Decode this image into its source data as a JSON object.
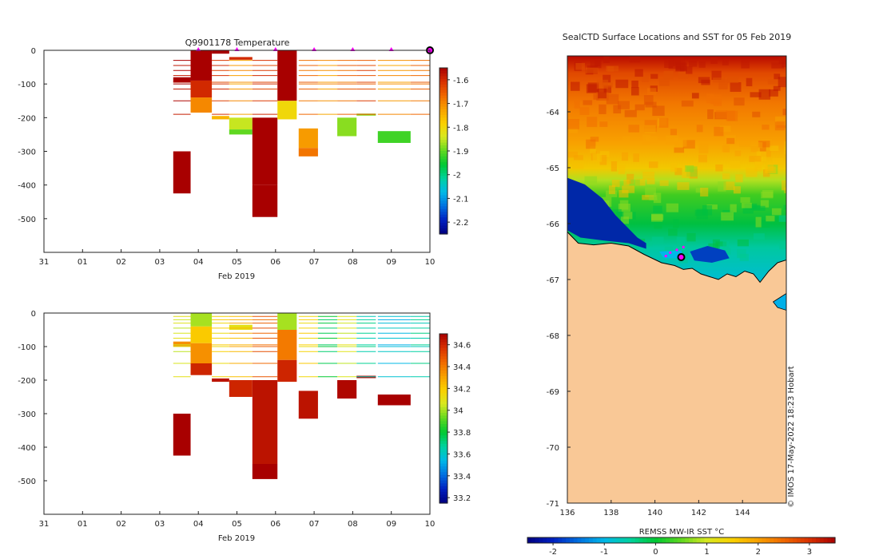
{
  "colors": {
    "land": "#f9c896",
    "axis": "#222222",
    "marker": "#ff00ff",
    "scale": [
      "#000080",
      "#0020c0",
      "#0070e0",
      "#00b8e8",
      "#00d2a0",
      "#00c832",
      "#60d820",
      "#d8e820",
      "#fad000",
      "#f8a000",
      "#f06800",
      "#d83000",
      "#a80000"
    ]
  },
  "chart_data": [
    {
      "type": "heatmap",
      "title": "Q9901178  Temperature",
      "xlabel": "Feb 2019",
      "ylabel": "",
      "xlim": [
        0,
        10
      ],
      "ylim": [
        -600,
        0
      ],
      "xticks": [
        {
          "v": 0,
          "label": "31"
        },
        {
          "v": 1,
          "label": "01"
        },
        {
          "v": 2,
          "label": "02"
        },
        {
          "v": 3,
          "label": "03"
        },
        {
          "v": 4,
          "label": "04"
        },
        {
          "v": 5,
          "label": "05"
        },
        {
          "v": 6,
          "label": "06"
        },
        {
          "v": 7,
          "label": "07"
        },
        {
          "v": 8,
          "label": "08"
        },
        {
          "v": 9,
          "label": "09"
        },
        {
          "v": 10,
          "label": "10"
        }
      ],
      "yticks": [
        {
          "v": 0,
          "label": "0"
        },
        {
          "v": -100,
          "label": "-100"
        },
        {
          "v": -200,
          "label": "-200"
        },
        {
          "v": -300,
          "label": "-300"
        },
        {
          "v": -400,
          "label": "-400"
        },
        {
          "v": -500,
          "label": "-500"
        }
      ],
      "colorbar": {
        "range": [
          -2.25,
          -1.55
        ],
        "ticks": [
          {
            "v": -1.6,
            "label": "-1.6"
          },
          {
            "v": -1.7,
            "label": "-1.7"
          },
          {
            "v": -1.8,
            "label": "-1.8"
          },
          {
            "v": -1.9,
            "label": "-1.9"
          },
          {
            "v": -2.0,
            "label": "-2"
          },
          {
            "v": -2.1,
            "label": "-2.1"
          },
          {
            "v": -2.2,
            "label": "-2.2"
          }
        ]
      },
      "surface_markers": [
        4.0,
        5.0,
        6.0,
        7.0,
        8.0,
        9.0
      ],
      "last_marker": 10.0,
      "profiles": [
        {
          "x0": 3.35,
          "x1": 3.8,
          "top": -80,
          "bottom": -95,
          "value": -1.55
        },
        {
          "x0": 3.35,
          "x1": 3.8,
          "top": -300,
          "bottom": -425,
          "value": -1.55
        },
        {
          "x0": 3.8,
          "x1": 4.35,
          "top": 0,
          "bottom": -90,
          "value": -1.55
        },
        {
          "x0": 3.8,
          "x1": 4.35,
          "top": -90,
          "bottom": -140,
          "value": -1.6
        },
        {
          "x0": 3.8,
          "x1": 4.35,
          "top": -140,
          "bottom": -185,
          "value": -1.7
        },
        {
          "x0": 4.35,
          "x1": 4.8,
          "top": 0,
          "bottom": -10,
          "value": -1.55
        },
        {
          "x0": 4.35,
          "x1": 4.8,
          "top": -195,
          "bottom": -205,
          "value": -1.75
        },
        {
          "x0": 4.8,
          "x1": 5.4,
          "top": -20,
          "bottom": -28,
          "value": -1.6
        },
        {
          "x0": 4.8,
          "x1": 5.4,
          "top": -200,
          "bottom": -235,
          "value": -1.85
        },
        {
          "x0": 4.8,
          "x1": 5.4,
          "top": -235,
          "bottom": -250,
          "value": -1.9
        },
        {
          "x0": 5.4,
          "x1": 6.05,
          "top": -200,
          "bottom": -400,
          "value": -1.55
        },
        {
          "x0": 5.4,
          "x1": 6.05,
          "top": -400,
          "bottom": -495,
          "value": -1.55
        },
        {
          "x0": 6.05,
          "x1": 6.55,
          "top": 0,
          "bottom": -150,
          "value": -1.55
        },
        {
          "x0": 6.05,
          "x1": 6.55,
          "top": -150,
          "bottom": -205,
          "value": -1.8
        },
        {
          "x0": 6.6,
          "x1": 7.1,
          "top": -232,
          "bottom": -290,
          "value": -1.72
        },
        {
          "x0": 6.6,
          "x1": 7.1,
          "top": -290,
          "bottom": -315,
          "value": -1.68
        },
        {
          "x0": 7.6,
          "x1": 8.1,
          "top": -200,
          "bottom": -255,
          "value": -1.88
        },
        {
          "x0": 8.1,
          "x1": 8.6,
          "top": -188,
          "bottom": -194,
          "value": -1.88
        },
        {
          "x0": 8.65,
          "x1": 9.5,
          "top": -240,
          "bottom": -275,
          "value": -1.92
        }
      ],
      "line_levels": [
        -30,
        -45,
        -60,
        -75,
        -95,
        -100,
        -115,
        -150,
        -190
      ],
      "line_rows": [
        {
          "x0": 3.35,
          "x1": 3.8,
          "value": -1.55
        },
        {
          "x0": 4.35,
          "x1": 4.8,
          "value": -1.6
        },
        {
          "x0": 4.8,
          "x1": 5.4,
          "value": -1.7
        },
        {
          "x0": 5.4,
          "x1": 6.05,
          "value": -1.6
        },
        {
          "x0": 6.6,
          "x1": 7.1,
          "value": -1.65
        },
        {
          "x0": 7.1,
          "x1": 7.6,
          "value": -1.7
        },
        {
          "x0": 7.6,
          "x1": 8.1,
          "value": -1.65
        },
        {
          "x0": 8.1,
          "x1": 8.6,
          "value": -1.62
        },
        {
          "x0": 8.65,
          "x1": 9.5,
          "value": -1.7
        },
        {
          "x0": 9.5,
          "x1": 10.0,
          "value": -1.65
        }
      ]
    },
    {
      "type": "heatmap",
      "title": "",
      "xlabel": "Feb 2019",
      "ylabel": "",
      "xlim": [
        0,
        10
      ],
      "ylim": [
        -600,
        0
      ],
      "xticks": [
        {
          "v": 0,
          "label": "31"
        },
        {
          "v": 1,
          "label": "01"
        },
        {
          "v": 2,
          "label": "02"
        },
        {
          "v": 3,
          "label": "03"
        },
        {
          "v": 4,
          "label": "04"
        },
        {
          "v": 5,
          "label": "05"
        },
        {
          "v": 6,
          "label": "06"
        },
        {
          "v": 7,
          "label": "07"
        },
        {
          "v": 8,
          "label": "08"
        },
        {
          "v": 9,
          "label": "09"
        },
        {
          "v": 10,
          "label": "10"
        }
      ],
      "yticks": [
        {
          "v": 0,
          "label": "0"
        },
        {
          "v": -100,
          "label": "-100"
        },
        {
          "v": -200,
          "label": "-200"
        },
        {
          "v": -300,
          "label": "-300"
        },
        {
          "v": -400,
          "label": "-400"
        },
        {
          "v": -500,
          "label": "-500"
        }
      ],
      "colorbar": {
        "range": [
          33.15,
          34.7
        ],
        "ticks": [
          {
            "v": 34.6,
            "label": "34.6"
          },
          {
            "v": 34.4,
            "label": "34.4"
          },
          {
            "v": 34.2,
            "label": "34.2"
          },
          {
            "v": 34.0,
            "label": "34"
          },
          {
            "v": 33.8,
            "label": "33.8"
          },
          {
            "v": 33.6,
            "label": "33.6"
          },
          {
            "v": 33.4,
            "label": "33.4"
          },
          {
            "v": 33.2,
            "label": "33.2"
          }
        ]
      },
      "profiles": [
        {
          "x0": 3.35,
          "x1": 3.8,
          "top": -85,
          "bottom": -100,
          "value": 34.35
        },
        {
          "x0": 3.35,
          "x1": 3.8,
          "top": -300,
          "bottom": -425,
          "value": 34.7
        },
        {
          "x0": 3.8,
          "x1": 4.35,
          "top": 0,
          "bottom": -40,
          "value": 34.0
        },
        {
          "x0": 3.8,
          "x1": 4.35,
          "top": -40,
          "bottom": -90,
          "value": 34.2
        },
        {
          "x0": 3.8,
          "x1": 4.35,
          "top": -90,
          "bottom": -150,
          "value": 34.35
        },
        {
          "x0": 3.8,
          "x1": 4.35,
          "top": -150,
          "bottom": -185,
          "value": 34.6
        },
        {
          "x0": 4.35,
          "x1": 4.8,
          "top": -195,
          "bottom": -205,
          "value": 34.65
        },
        {
          "x0": 4.8,
          "x1": 5.4,
          "top": -35,
          "bottom": -50,
          "value": 34.1
        },
        {
          "x0": 4.8,
          "x1": 5.4,
          "top": -200,
          "bottom": -250,
          "value": 34.6
        },
        {
          "x0": 5.4,
          "x1": 6.05,
          "top": -200,
          "bottom": -450,
          "value": 34.65
        },
        {
          "x0": 5.4,
          "x1": 6.05,
          "top": -450,
          "bottom": -495,
          "value": 34.7
        },
        {
          "x0": 6.05,
          "x1": 6.55,
          "top": 0,
          "bottom": -50,
          "value": 34.0
        },
        {
          "x0": 6.05,
          "x1": 6.55,
          "top": -50,
          "bottom": -140,
          "value": 34.4
        },
        {
          "x0": 6.05,
          "x1": 6.55,
          "top": -140,
          "bottom": -205,
          "value": 34.6
        },
        {
          "x0": 6.6,
          "x1": 7.1,
          "top": -232,
          "bottom": -315,
          "value": 34.65
        },
        {
          "x0": 7.6,
          "x1": 8.1,
          "top": -200,
          "bottom": -255,
          "value": 34.68
        },
        {
          "x0": 8.1,
          "x1": 8.6,
          "top": -187,
          "bottom": -194,
          "value": 34.68
        },
        {
          "x0": 8.65,
          "x1": 9.5,
          "top": -243,
          "bottom": -275,
          "value": 34.7
        }
      ],
      "line_levels": [
        -10,
        -20,
        -30,
        -45,
        -60,
        -75,
        -95,
        -100,
        -115,
        -150,
        -190
      ],
      "line_rows": [
        {
          "x0": 3.35,
          "x1": 3.8,
          "value": 34.1
        },
        {
          "x0": 4.35,
          "x1": 4.8,
          "value": 34.2
        },
        {
          "x0": 4.8,
          "x1": 5.4,
          "value": 34.3
        },
        {
          "x0": 5.4,
          "x1": 6.05,
          "value": 34.5
        },
        {
          "x0": 6.6,
          "x1": 7.1,
          "value": 34.2
        },
        {
          "x0": 7.1,
          "x1": 7.6,
          "value": 33.8
        },
        {
          "x0": 7.6,
          "x1": 8.1,
          "value": 34.1
        },
        {
          "x0": 8.1,
          "x1": 8.6,
          "value": 33.7
        },
        {
          "x0": 8.65,
          "x1": 9.5,
          "value": 33.6
        },
        {
          "x0": 9.5,
          "x1": 10.0,
          "value": 33.7
        }
      ]
    },
    {
      "type": "heatmap",
      "title": "SealCTD Surface Locations and SST for 05 Feb 2019",
      "xlabel": "",
      "ylabel": "",
      "xlim": [
        136,
        146
      ],
      "ylim": [
        -71,
        -63
      ],
      "xticks": [
        {
          "v": 136,
          "label": "136"
        },
        {
          "v": 138,
          "label": "138"
        },
        {
          "v": 140,
          "label": "140"
        },
        {
          "v": 142,
          "label": "142"
        },
        {
          "v": 144,
          "label": "144"
        }
      ],
      "yticks": [
        {
          "v": -64,
          "label": "-64"
        },
        {
          "v": -65,
          "label": "-65"
        },
        {
          "v": -66,
          "label": "-66"
        },
        {
          "v": -67,
          "label": "-67"
        },
        {
          "v": -68,
          "label": "-68"
        },
        {
          "v": -69,
          "label": "-69"
        },
        {
          "v": -70,
          "label": "-70"
        },
        {
          "v": -71,
          "label": "-71"
        }
      ],
      "colorbar": {
        "label": "REMSS MW-IR SST °C",
        "range": [
          -2.5,
          3.5
        ],
        "ticks": [
          {
            "v": -2,
            "label": "-2"
          },
          {
            "v": -1,
            "label": "-1"
          },
          {
            "v": 0,
            "label": "0"
          },
          {
            "v": 1,
            "label": "1"
          },
          {
            "v": 2,
            "label": "2"
          },
          {
            "v": 3,
            "label": "3"
          }
        ]
      },
      "credit": "© IMOS 17-May-2022 18:23 Hobart",
      "coast": [
        [
          136,
          -66.15
        ],
        [
          136.5,
          -66.35
        ],
        [
          137.2,
          -66.38
        ],
        [
          138,
          -66.35
        ],
        [
          138.8,
          -66.4
        ],
        [
          139.5,
          -66.55
        ],
        [
          140.3,
          -66.7
        ],
        [
          140.9,
          -66.75
        ],
        [
          141.3,
          -66.82
        ],
        [
          141.7,
          -66.8
        ],
        [
          142.1,
          -66.9
        ],
        [
          142.5,
          -66.95
        ],
        [
          142.9,
          -67.0
        ],
        [
          143.3,
          -66.9
        ],
        [
          143.7,
          -66.95
        ],
        [
          144.1,
          -66.85
        ],
        [
          144.5,
          -66.9
        ],
        [
          144.8,
          -67.05
        ],
        [
          145.2,
          -66.85
        ],
        [
          145.6,
          -66.7
        ],
        [
          146,
          -66.65
        ]
      ],
      "ice_points": [
        [
          140.7,
          -66.52
        ],
        [
          141.0,
          -66.47
        ],
        [
          141.3,
          -66.42
        ],
        [
          140.5,
          -66.58
        ]
      ],
      "seal_position": [
        141.2,
        -66.6
      ],
      "east_patch": [
        [
          145.4,
          -67.4
        ],
        [
          146,
          -67.25
        ],
        [
          146,
          -67.55
        ],
        [
          145.6,
          -67.5
        ]
      ]
    }
  ]
}
